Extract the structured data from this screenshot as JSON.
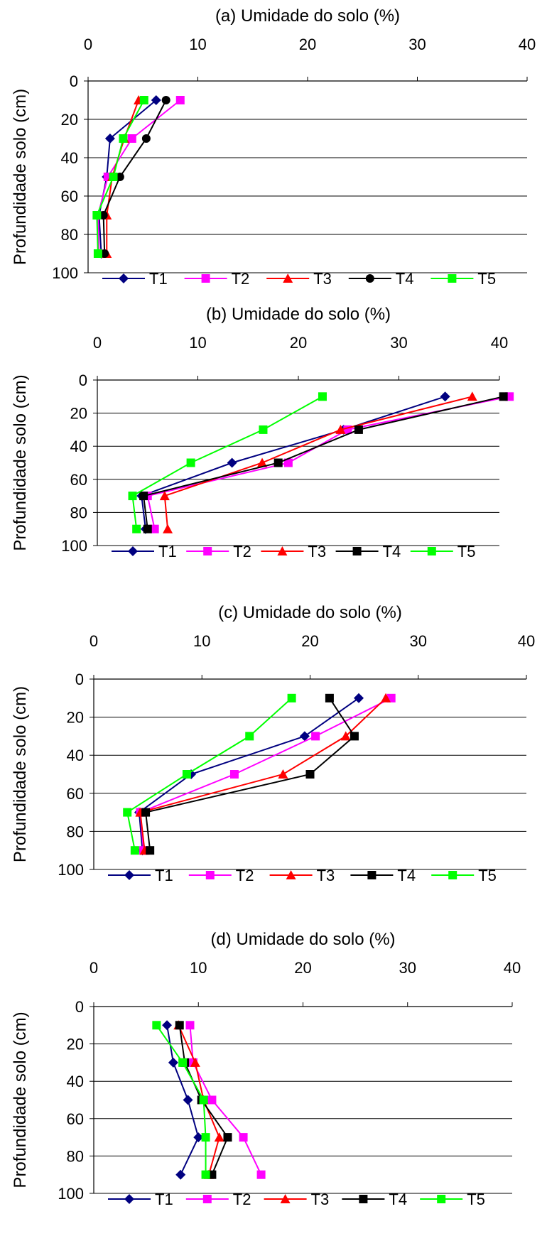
{
  "chart_data": [
    {
      "type": "line",
      "title": "(a) Umidade do solo (%)",
      "xlabel": "",
      "ylabel": "Profundidade solo (cm)",
      "xlim": [
        0,
        40
      ],
      "ylim": [
        100,
        0
      ],
      "xticks": [
        0,
        10,
        20,
        30,
        40
      ],
      "yticks": [
        0,
        20,
        40,
        60,
        80,
        100
      ],
      "y": [
        10,
        30,
        50,
        70,
        90
      ],
      "grid": "horizontal",
      "legend": "bottom",
      "series": [
        {
          "name": "T1",
          "color": "#000080",
          "marker": "diamond",
          "values": [
            6.2,
            2.0,
            1.7,
            1.0,
            1.2
          ]
        },
        {
          "name": "T2",
          "color": "#ff00ff",
          "marker": "square",
          "values": [
            8.4,
            4.0,
            1.8,
            0.9,
            1.0
          ]
        },
        {
          "name": "T3",
          "color": "#ff0000",
          "marker": "triangle",
          "values": [
            4.6,
            3.3,
            2.2,
            1.7,
            1.7
          ]
        },
        {
          "name": "T4",
          "color": "#000000",
          "marker": "circle",
          "values": [
            7.1,
            5.3,
            2.9,
            1.4,
            1.5
          ]
        },
        {
          "name": "T5",
          "color": "#00ff00",
          "marker": "square",
          "values": [
            5.1,
            3.2,
            2.3,
            0.8,
            0.9
          ]
        }
      ]
    },
    {
      "type": "line",
      "title": "(b) Umidade do solo (%)",
      "xlabel": "",
      "ylabel": "Profundidade solo (cm)",
      "xlim": [
        0,
        40
      ],
      "ylim": [
        100,
        0
      ],
      "xticks": [
        0,
        10,
        20,
        30,
        40
      ],
      "yticks": [
        0,
        20,
        40,
        60,
        80,
        100
      ],
      "y": [
        10,
        30,
        50,
        70,
        90
      ],
      "grid": "horizontal",
      "legend": "bottom",
      "series": [
        {
          "name": "T1",
          "color": "#000080",
          "marker": "diamond",
          "values": [
            34.6,
            24.5,
            13.4,
            4.4,
            4.8
          ]
        },
        {
          "name": "T2",
          "color": "#ff00ff",
          "marker": "square",
          "values": [
            41.0,
            24.9,
            19.0,
            5.0,
            5.7
          ]
        },
        {
          "name": "T3",
          "color": "#ff0000",
          "marker": "triangle",
          "values": [
            37.3,
            24.2,
            16.4,
            6.7,
            7.0
          ]
        },
        {
          "name": "T4",
          "color": "#000000",
          "marker": "square",
          "values": [
            40.4,
            26.0,
            18.0,
            4.6,
            5.0
          ]
        },
        {
          "name": "T5",
          "color": "#00ff00",
          "marker": "square",
          "values": [
            22.4,
            16.5,
            9.3,
            3.5,
            3.9
          ]
        }
      ]
    },
    {
      "type": "line",
      "title": "(c) Umidade do solo (%)",
      "xlabel": "",
      "ylabel": "Profundidade solo (cm)",
      "xlim": [
        0,
        40
      ],
      "ylim": [
        100,
        0
      ],
      "xticks": [
        0,
        10,
        20,
        30,
        40
      ],
      "yticks": [
        0,
        20,
        40,
        60,
        80,
        100
      ],
      "y": [
        10,
        30,
        50,
        70,
        90
      ],
      "grid": "horizontal",
      "legend": "bottom",
      "series": [
        {
          "name": "T1",
          "color": "#000080",
          "marker": "diamond",
          "values": [
            24.5,
            19.5,
            9.0,
            4.2,
            4.5
          ]
        },
        {
          "name": "T2",
          "color": "#ff00ff",
          "marker": "square",
          "values": [
            27.5,
            20.5,
            13.0,
            4.3,
            4.6
          ]
        },
        {
          "name": "T3",
          "color": "#ff0000",
          "marker": "triangle",
          "values": [
            27.0,
            23.3,
            17.5,
            4.3,
            4.7
          ]
        },
        {
          "name": "T4",
          "color": "#000000",
          "marker": "square",
          "values": [
            21.8,
            24.1,
            20.0,
            4.8,
            5.2
          ]
        },
        {
          "name": "T5",
          "color": "#00ff00",
          "marker": "square",
          "values": [
            18.3,
            14.4,
            8.6,
            3.1,
            3.8
          ]
        }
      ]
    },
    {
      "type": "line",
      "title": "(d) Umidade do solo (%)",
      "xlabel": "",
      "ylabel": "Profundidade solo (cm)",
      "xlim": [
        0,
        40
      ],
      "ylim": [
        100,
        0
      ],
      "xticks": [
        0,
        10,
        20,
        30,
        40
      ],
      "yticks": [
        0,
        20,
        40,
        60,
        80,
        100
      ],
      "y": [
        10,
        30,
        50,
        70,
        90
      ],
      "grid": "horizontal",
      "legend": "bottom",
      "series": [
        {
          "name": "T1",
          "color": "#000080",
          "marker": "diamond",
          "values": [
            7.0,
            7.6,
            9.0,
            10.0,
            8.3
          ]
        },
        {
          "name": "T2",
          "color": "#ff00ff",
          "marker": "square",
          "values": [
            9.2,
            9.5,
            11.3,
            14.3,
            16.0
          ]
        },
        {
          "name": "T3",
          "color": "#ff0000",
          "marker": "triangle",
          "values": [
            8.1,
            9.7,
            10.5,
            12.0,
            11.0
          ]
        },
        {
          "name": "T4",
          "color": "#000000",
          "marker": "square",
          "values": [
            8.2,
            8.7,
            10.3,
            12.8,
            11.3
          ]
        },
        {
          "name": "T5",
          "color": "#00ff00",
          "marker": "square",
          "values": [
            6.0,
            8.5,
            10.5,
            10.7,
            10.7
          ]
        }
      ]
    }
  ]
}
